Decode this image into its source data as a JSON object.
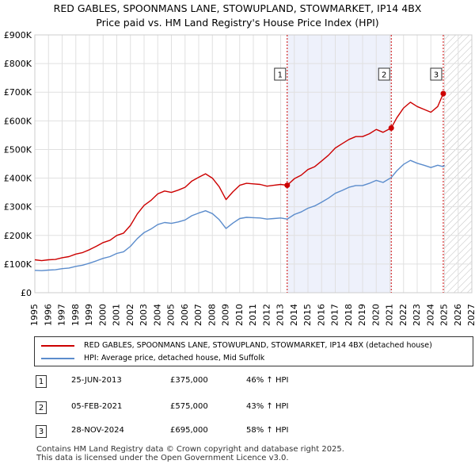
{
  "title_line1": "RED GABLES, SPOONMANS LANE, STOWUPLAND, STOWMARKET, IP14 4BX",
  "title_line2": "Price paid vs. HM Land Registry's House Price Index (HPI)",
  "colors": {
    "property": "#cc0000",
    "hpi": "#5b8ccc",
    "shade": "#eef1fb",
    "grid": "#e0e0e0",
    "marker_line": "#cc0000"
  },
  "chart_data": {
    "type": "line",
    "title": "RED GABLES, SPOONMANS LANE, STOWUPLAND, STOWMARKET, IP14 4BX — Price paid vs. HM Land Registry's House Price Index (HPI)",
    "x_ticks": [
      "1995",
      "1996",
      "1997",
      "1998",
      "1999",
      "2000",
      "2001",
      "2002",
      "2003",
      "2004",
      "2005",
      "2006",
      "2007",
      "2008",
      "2009",
      "2010",
      "2011",
      "2012",
      "2013",
      "2014",
      "2015",
      "2016",
      "2017",
      "2018",
      "2019",
      "2020",
      "2021",
      "2022",
      "2023",
      "2024",
      "2025",
      "2026",
      "2027"
    ],
    "y_ticks": [
      "£0",
      "£100K",
      "£200K",
      "£300K",
      "£400K",
      "£500K",
      "£600K",
      "£700K",
      "£800K",
      "£900K"
    ],
    "xlim": [
      1995,
      2027
    ],
    "ylim": [
      0,
      900000
    ],
    "shaded_region": [
      2013.48,
      2021.1
    ],
    "hatched_from": 2025.0,
    "series": [
      {
        "name": "RED GABLES, SPOONMANS LANE, STOWUPLAND, STOWMARKET, IP14 4BX (detached house)",
        "x": [
          1995.0,
          1995.5,
          1996.0,
          1996.5,
          1997.0,
          1997.5,
          1998.0,
          1998.5,
          1999.0,
          1999.5,
          2000.0,
          2000.5,
          2001.0,
          2001.5,
          2002.0,
          2002.5,
          2003.0,
          2003.5,
          2004.0,
          2004.5,
          2005.0,
          2005.5,
          2006.0,
          2006.5,
          2007.0,
          2007.5,
          2008.0,
          2008.5,
          2009.0,
          2009.5,
          2010.0,
          2010.5,
          2011.0,
          2011.5,
          2012.0,
          2012.5,
          2013.0,
          2013.48,
          2014.0,
          2014.5,
          2015.0,
          2015.5,
          2016.0,
          2016.5,
          2017.0,
          2017.5,
          2018.0,
          2018.5,
          2019.0,
          2019.5,
          2020.0,
          2020.5,
          2021.1,
          2021.5,
          2022.0,
          2022.5,
          2023.0,
          2023.5,
          2024.0,
          2024.5,
          2024.91,
          2025.0
        ],
        "values": [
          115000,
          112000,
          115000,
          116000,
          122000,
          126000,
          135000,
          140000,
          150000,
          162000,
          175000,
          183000,
          200000,
          208000,
          235000,
          275000,
          305000,
          322000,
          345000,
          355000,
          350000,
          358000,
          368000,
          390000,
          403000,
          415000,
          400000,
          370000,
          325000,
          352000,
          375000,
          382000,
          380000,
          378000,
          372000,
          375000,
          378000,
          375000,
          398000,
          410000,
          430000,
          440000,
          460000,
          480000,
          505000,
          520000,
          535000,
          545000,
          545000,
          555000,
          570000,
          560000,
          575000,
          610000,
          645000,
          665000,
          650000,
          640000,
          630000,
          650000,
          695000,
          700000
        ]
      },
      {
        "name": "HPI: Average price, detached house, Mid Suffolk",
        "x": [
          1995.0,
          1995.5,
          1996.0,
          1996.5,
          1997.0,
          1997.5,
          1998.0,
          1998.5,
          1999.0,
          1999.5,
          2000.0,
          2000.5,
          2001.0,
          2001.5,
          2002.0,
          2002.5,
          2003.0,
          2003.5,
          2004.0,
          2004.5,
          2005.0,
          2005.5,
          2006.0,
          2006.5,
          2007.0,
          2007.5,
          2008.0,
          2008.5,
          2009.0,
          2009.5,
          2010.0,
          2010.5,
          2011.0,
          2011.5,
          2012.0,
          2012.5,
          2013.0,
          2013.48,
          2014.0,
          2014.5,
          2015.0,
          2015.5,
          2016.0,
          2016.5,
          2017.0,
          2017.5,
          2018.0,
          2018.5,
          2019.0,
          2019.5,
          2020.0,
          2020.5,
          2021.1,
          2021.5,
          2022.0,
          2022.5,
          2023.0,
          2023.5,
          2024.0,
          2024.5,
          2024.91,
          2025.0
        ],
        "values": [
          78000,
          77000,
          79000,
          80000,
          84000,
          86000,
          92000,
          96000,
          103000,
          111000,
          120000,
          126000,
          137000,
          143000,
          162000,
          189000,
          210000,
          222000,
          238000,
          245000,
          242000,
          247000,
          254000,
          269000,
          278000,
          286000,
          276000,
          255000,
          224000,
          243000,
          259000,
          263000,
          262000,
          261000,
          257000,
          259000,
          261000,
          257000,
          273000,
          282000,
          295000,
          303000,
          316000,
          330000,
          347000,
          357000,
          368000,
          374000,
          374000,
          382000,
          392000,
          385000,
          402000,
          425000,
          448000,
          462000,
          452000,
          445000,
          437000,
          445000,
          440000,
          445000
        ]
      }
    ],
    "annotations": [
      {
        "label": "1",
        "x": 2013.48,
        "y": 375000
      },
      {
        "label": "2",
        "x": 2021.1,
        "y": 575000
      },
      {
        "label": "3",
        "x": 2024.91,
        "y": 695000
      }
    ]
  },
  "legend": {
    "property": "RED GABLES, SPOONMANS LANE, STOWUPLAND, STOWMARKET, IP14 4BX (detached house)",
    "hpi": "HPI: Average price, detached house, Mid Suffolk"
  },
  "sales": [
    {
      "num": "1",
      "date": "25-JUN-2013",
      "price": "£375,000",
      "hpi": "46% ↑ HPI"
    },
    {
      "num": "2",
      "date": "05-FEB-2021",
      "price": "£575,000",
      "hpi": "43% ↑ HPI"
    },
    {
      "num": "3",
      "date": "28-NOV-2024",
      "price": "£695,000",
      "hpi": "58% ↑ HPI"
    }
  ],
  "footer_line1": "Contains HM Land Registry data © Crown copyright and database right 2025.",
  "footer_line2": "This data is licensed under the Open Government Licence v3.0."
}
